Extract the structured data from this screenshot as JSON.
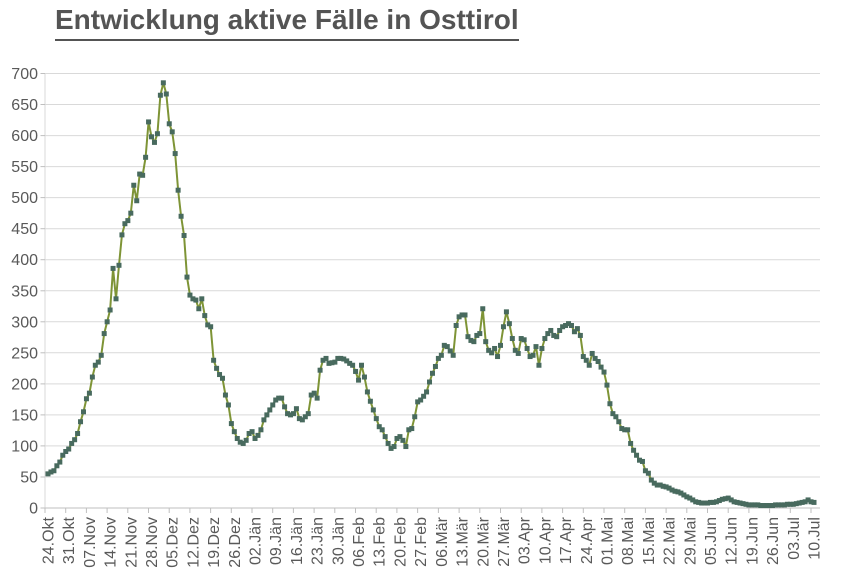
{
  "title": "Entwicklung aktive Fälle in Osttirol",
  "chart_data": {
    "type": "line",
    "title": "Entwicklung aktive Fälle in Osttirol",
    "xlabel": "",
    "ylabel": "",
    "ylim": [
      0,
      700
    ],
    "y_tick_step": 50,
    "grid": true,
    "legend_position": "none",
    "marker_shape": "square",
    "x_tick_interval_days": 7,
    "y_tick_labels": [
      "0",
      "50",
      "100",
      "150",
      "200",
      "250",
      "300",
      "350",
      "400",
      "450",
      "500",
      "550",
      "600",
      "650",
      "700"
    ],
    "x_tick_labels": [
      "24.Okt",
      "31.Okt",
      "07.Nov",
      "14.Nov",
      "21.Nov",
      "28.Nov",
      "05.Dez",
      "12.Dez",
      "19.Dez",
      "26.Dez",
      "02.Jän",
      "09.Jän",
      "16.Jän",
      "23.Jän",
      "30.Jän",
      "06.Feb",
      "13.Feb",
      "20.Feb",
      "27.Feb",
      "06.Mär",
      "13.Mär",
      "20.Mär",
      "27.Mär",
      "03.Apr",
      "10.Apr",
      "17.Apr",
      "24.Apr",
      "01.Mai",
      "08.Mai",
      "15.Mai",
      "22.Mai",
      "29.Mai",
      "05.Jun",
      "12.Jun",
      "19.Jun",
      "26.Jun",
      "03.Jul",
      "10.Jul"
    ],
    "values": [
      55,
      58,
      60,
      68,
      74,
      85,
      91,
      95,
      104,
      110,
      120,
      139,
      155,
      176,
      185,
      211,
      230,
      235,
      246,
      281,
      300,
      319,
      386,
      337,
      391,
      440,
      458,
      463,
      475,
      520,
      495,
      538,
      536,
      565,
      622,
      598,
      589,
      603,
      665,
      685,
      667,
      619,
      606,
      571,
      512,
      470,
      439,
      372,
      343,
      337,
      335,
      321,
      337,
      310,
      295,
      292,
      238,
      225,
      215,
      209,
      182,
      166,
      136,
      123,
      112,
      106,
      104,
      109,
      120,
      123,
      112,
      117,
      126,
      142,
      150,
      158,
      166,
      174,
      177,
      177,
      163,
      152,
      150,
      152,
      160,
      144,
      142,
      147,
      152,
      182,
      185,
      177,
      222,
      238,
      241,
      233,
      234,
      235,
      241,
      241,
      240,
      237,
      233,
      230,
      220,
      206,
      230,
      211,
      187,
      172,
      158,
      144,
      131,
      126,
      115,
      104,
      96,
      99,
      112,
      115,
      109,
      99,
      126,
      128,
      147,
      171,
      174,
      180,
      187,
      203,
      217,
      228,
      241,
      246,
      262,
      260,
      253,
      246,
      294,
      308,
      311,
      311,
      276,
      270,
      268,
      278,
      281,
      321,
      268,
      254,
      250,
      257,
      244,
      262,
      292,
      316,
      297,
      273,
      254,
      249,
      273,
      271,
      257,
      244,
      246,
      260,
      230,
      257,
      273,
      281,
      286,
      278,
      276,
      286,
      292,
      294,
      297,
      294,
      284,
      289,
      278,
      244,
      238,
      230,
      249,
      241,
      236,
      227,
      219,
      198,
      168,
      152,
      147,
      139,
      128,
      126,
      126,
      104,
      93,
      85,
      77,
      75,
      60,
      56,
      45,
      40,
      37,
      37,
      35,
      34,
      32,
      29,
      27,
      26,
      24,
      21,
      18,
      16,
      13,
      10,
      9,
      8,
      8,
      8,
      9,
      9,
      10,
      12,
      14,
      15,
      16,
      13,
      10,
      9,
      8,
      7,
      6,
      5,
      5,
      5,
      5,
      4,
      4,
      4,
      4,
      4,
      5,
      5,
      5,
      5,
      6,
      6,
      6,
      7,
      8,
      9,
      10,
      13,
      10,
      9
    ],
    "colors": {
      "line": "#7E9436",
      "marker": "#486A5E",
      "gridline": "#D9D9D9",
      "axis_line": "#BFBFBF",
      "axis_text": "#595959",
      "title_text": "#545454",
      "background": "#FFFFFF"
    }
  }
}
